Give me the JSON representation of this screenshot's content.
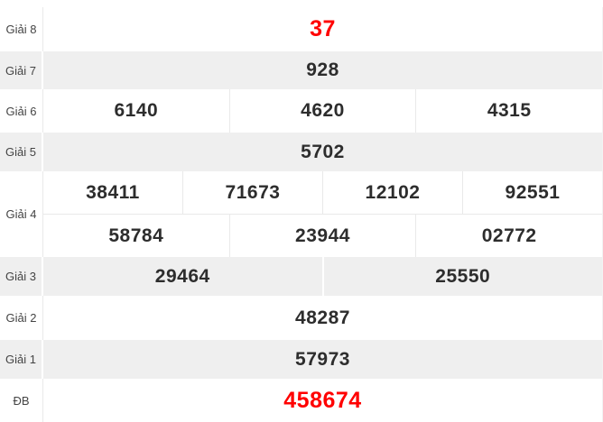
{
  "table": {
    "title": "lottery-results",
    "colors": {
      "highlight_red": "#ff0000",
      "number_text": "#2d2d2d",
      "label_text": "#444444",
      "alt_row_bg": "#efefef",
      "divider": "#e9e9e9"
    },
    "rows": [
      {
        "label": "Giải 8",
        "highlight": true,
        "groups": [
          [
            "37"
          ]
        ]
      },
      {
        "label": "Giải 7",
        "highlight": false,
        "groups": [
          [
            "928"
          ]
        ]
      },
      {
        "label": "Giải 6",
        "highlight": false,
        "groups": [
          [
            "6140",
            "4620",
            "4315"
          ]
        ]
      },
      {
        "label": "Giải 5",
        "highlight": false,
        "groups": [
          [
            "5702"
          ]
        ]
      },
      {
        "label": "Giải 4",
        "highlight": false,
        "groups": [
          [
            "38411",
            "71673",
            "12102",
            "92551"
          ],
          [
            "58784",
            "23944",
            "02772"
          ]
        ]
      },
      {
        "label": "Giải 3",
        "highlight": false,
        "groups": [
          [
            "29464",
            "25550"
          ]
        ]
      },
      {
        "label": "Giải 2",
        "highlight": false,
        "groups": [
          [
            "48287"
          ]
        ]
      },
      {
        "label": "Giải 1",
        "highlight": false,
        "groups": [
          [
            "57973"
          ]
        ]
      },
      {
        "label": "ĐB",
        "highlight": true,
        "groups": [
          [
            "458674"
          ]
        ]
      }
    ]
  }
}
